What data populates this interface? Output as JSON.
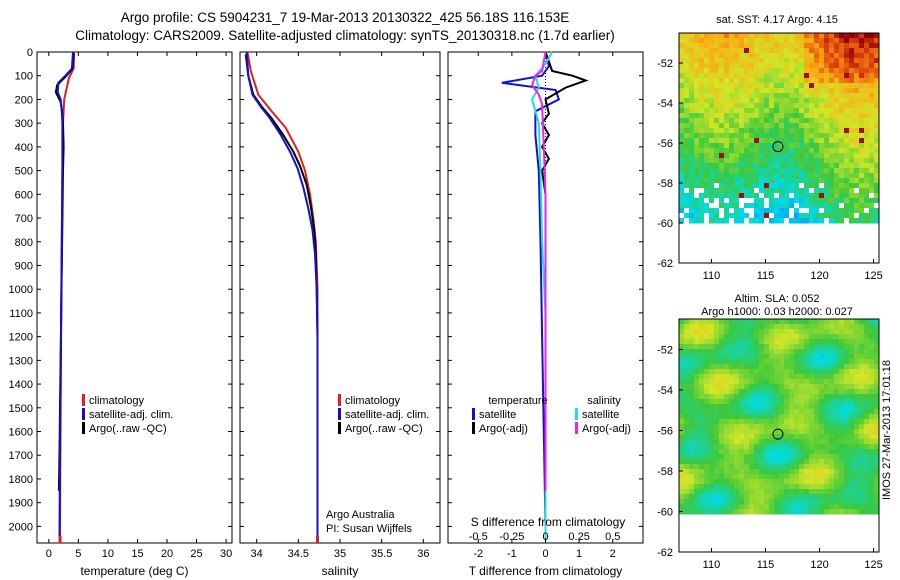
{
  "header": {
    "line1": "Argo profile: CS 5904231_7 19-Mar-2013 20130322_425 56.18S 116.153E",
    "line2": "Climatology: CARS2009. Satellite-adjusted climatology: synTS_20130318.nc (1.7d earlier)"
  },
  "colors": {
    "climatology": "#e02020",
    "satellite": "#1010d0",
    "argo": "#000000",
    "sat_s": "#22dddd",
    "argo_s": "#ee22ee"
  },
  "chart_data": [
    {
      "type": "line",
      "title": "",
      "xlabel": "temperature (deg C)",
      "ylabel": "",
      "xlim": [
        -2,
        31
      ],
      "ylim": [
        2070,
        0
      ],
      "xticks": [
        0,
        5,
        10,
        15,
        20,
        25,
        30
      ],
      "yticks": [
        0,
        100,
        200,
        300,
        400,
        500,
        600,
        700,
        800,
        900,
        1000,
        1100,
        1200,
        1300,
        1400,
        1500,
        1600,
        1700,
        1800,
        1900,
        2000
      ],
      "legend": [
        "climatology",
        "satellite-adj. clim.",
        "Argo(..raw -QC)"
      ],
      "series": [
        {
          "name": "climatology",
          "color_key": "climatology",
          "points": [
            [
              4.3,
              0
            ],
            [
              4.2,
              70
            ],
            [
              3.4,
              110
            ],
            [
              2.6,
              200
            ],
            [
              2.4,
              300
            ],
            [
              2.3,
              500
            ],
            [
              2.2,
              800
            ],
            [
              2.1,
              1100
            ],
            [
              2.0,
              1500
            ],
            [
              1.9,
              2050
            ]
          ]
        },
        {
          "name": "Argo(..raw -QC)",
          "color_key": "argo",
          "points": [
            [
              4.2,
              5
            ],
            [
              4.0,
              70
            ],
            [
              3.0,
              100
            ],
            [
              1.4,
              140
            ],
            [
              1.2,
              170
            ],
            [
              2.0,
              210
            ],
            [
              2.2,
              240
            ],
            [
              2.4,
              300
            ],
            [
              2.5,
              400
            ],
            [
              2.4,
              500
            ],
            [
              2.3,
              700
            ],
            [
              2.2,
              900
            ],
            [
              2.1,
              1100
            ],
            [
              2.0,
              1300
            ],
            [
              1.9,
              1500
            ],
            [
              1.8,
              1700
            ],
            [
              1.7,
              1850
            ]
          ]
        },
        {
          "name": "satellite-adj. clim.",
          "color_key": "satellite",
          "points": [
            [
              4.1,
              0
            ],
            [
              3.9,
              70
            ],
            [
              2.8,
              100
            ],
            [
              1.6,
              130
            ],
            [
              1.5,
              170
            ],
            [
              2.0,
              200
            ],
            [
              2.2,
              250
            ],
            [
              2.3,
              300
            ],
            [
              2.3,
              500
            ],
            [
              2.2,
              800
            ],
            [
              2.1,
              1100
            ],
            [
              2.0,
              1400
            ],
            [
              1.9,
              1700
            ],
            [
              1.8,
              2050
            ]
          ]
        }
      ]
    },
    {
      "type": "line",
      "title": "",
      "xlabel": "salinity",
      "ylabel": "",
      "xlim": [
        33.8,
        36.2
      ],
      "ylim": [
        2070,
        0
      ],
      "xticks": [
        34,
        34.5,
        35,
        35.5,
        36
      ],
      "legend": [
        "climatology",
        "satellite-adj. clim.",
        "Argo(..raw -QC)"
      ],
      "annotations": [
        "Argo Australia",
        "PI: Susan Wijffels"
      ],
      "series": [
        {
          "name": "climatology",
          "color_key": "climatology",
          "points": [
            [
              33.89,
              0
            ],
            [
              33.93,
              80
            ],
            [
              34.02,
              180
            ],
            [
              34.18,
              250
            ],
            [
              34.35,
              320
            ],
            [
              34.5,
              420
            ],
            [
              34.58,
              500
            ],
            [
              34.64,
              600
            ],
            [
              34.68,
              700
            ],
            [
              34.71,
              800
            ],
            [
              34.73,
              1000
            ],
            [
              34.73,
              1200
            ],
            [
              34.73,
              1500
            ],
            [
              34.73,
              2050
            ]
          ]
        },
        {
          "name": "Argo(..raw -QC)",
          "color_key": "argo",
          "points": [
            [
              33.87,
              10
            ],
            [
              33.9,
              100
            ],
            [
              33.96,
              180
            ],
            [
              34.06,
              230
            ],
            [
              34.18,
              280
            ],
            [
              34.32,
              350
            ],
            [
              34.44,
              420
            ],
            [
              34.52,
              480
            ],
            [
              34.6,
              560
            ],
            [
              34.65,
              650
            ],
            [
              34.69,
              750
            ],
            [
              34.71,
              850
            ],
            [
              34.72,
              1000
            ],
            [
              34.73,
              1200
            ],
            [
              34.73,
              1500
            ],
            [
              34.73,
              1850
            ]
          ]
        },
        {
          "name": "satellite-adj. clim.",
          "color_key": "satellite",
          "points": [
            [
              33.88,
              0
            ],
            [
              33.9,
              100
            ],
            [
              33.95,
              180
            ],
            [
              34.05,
              230
            ],
            [
              34.16,
              280
            ],
            [
              34.29,
              350
            ],
            [
              34.4,
              420
            ],
            [
              34.49,
              490
            ],
            [
              34.56,
              570
            ],
            [
              34.62,
              660
            ],
            [
              34.67,
              750
            ],
            [
              34.7,
              850
            ],
            [
              34.72,
              1000
            ],
            [
              34.73,
              1200
            ],
            [
              34.73,
              1500
            ],
            [
              34.73,
              2050
            ]
          ]
        }
      ]
    },
    {
      "type": "line",
      "title": "",
      "xlabel": "T difference from climatology",
      "xlabel_top": "S difference from climatology",
      "ylabel": "",
      "xlim": [
        -2.9,
        2.9
      ],
      "ylim": [
        2070,
        0
      ],
      "xticks": [
        -2,
        -1,
        0,
        1,
        2
      ],
      "xticks_s_labels": [
        "-0.5",
        "-0.25",
        "0",
        "0.25",
        "0.5"
      ],
      "xticks_s_values": [
        -2,
        -1,
        0,
        1,
        2
      ],
      "legend_left_title": "temperature",
      "legend_right_title": "salinity",
      "legend": [
        "satellite",
        "Argo(-adj)",
        "satellite",
        "Argo(-adj)"
      ],
      "series": [
        {
          "name": "T satellite",
          "color_key": "satellite",
          "points": [
            [
              0,
              0
            ],
            [
              0.1,
              60
            ],
            [
              -0.1,
              100
            ],
            [
              -1.3,
              130
            ],
            [
              0.3,
              160
            ],
            [
              0.4,
              200
            ],
            [
              -0.3,
              250
            ],
            [
              -0.3,
              350
            ],
            [
              -0.2,
              500
            ],
            [
              -0.15,
              800
            ],
            [
              -0.1,
              1200
            ],
            [
              -0.05,
              1600
            ],
            [
              0,
              2000
            ]
          ]
        },
        {
          "name": "T Argo(-adj)",
          "color_key": "argo",
          "points": [
            [
              0,
              0
            ],
            [
              0.2,
              80
            ],
            [
              0.8,
              100
            ],
            [
              1.2,
              120
            ],
            [
              0.6,
              150
            ],
            [
              0,
              200
            ],
            [
              0.1,
              260
            ],
            [
              -0.1,
              300
            ],
            [
              0.1,
              350
            ],
            [
              -0.1,
              400
            ],
            [
              0.1,
              450
            ],
            [
              -0.1,
              500
            ],
            [
              0,
              600
            ],
            [
              0,
              800
            ],
            [
              0,
              1200
            ],
            [
              0,
              1600
            ],
            [
              0,
              1850
            ]
          ]
        },
        {
          "name": "S satellite",
          "color_key": "sat_s",
          "points": [
            [
              0.2,
              0
            ],
            [
              0,
              50
            ],
            [
              -0.3,
              100
            ],
            [
              -0.2,
              150
            ],
            [
              -0.4,
              200
            ],
            [
              -0.2,
              300
            ],
            [
              -0.15,
              500
            ],
            [
              -0.1,
              800
            ],
            [
              0,
              1100
            ],
            [
              0,
              1500
            ],
            [
              0,
              2050
            ]
          ]
        },
        {
          "name": "S Argo(-adj)",
          "color_key": "argo_s",
          "points": [
            [
              0,
              0
            ],
            [
              -0.1,
              80
            ],
            [
              -0.3,
              100
            ],
            [
              -0.4,
              140
            ],
            [
              -0.2,
              180
            ],
            [
              -0.1,
              220
            ],
            [
              -0.05,
              400
            ],
            [
              0,
              600
            ],
            [
              0,
              1000
            ],
            [
              0,
              1500
            ],
            [
              0,
              1850
            ]
          ]
        }
      ]
    },
    {
      "type": "heatmap",
      "title": "sat. SST: 4.17 Argo: 4.15",
      "xlim": [
        107,
        125.5
      ],
      "ylim": [
        -62,
        -50.5
      ],
      "xticks": [
        110,
        115,
        120,
        125
      ],
      "yticks": [
        -52,
        -54,
        -56,
        -58,
        -60,
        -62
      ],
      "marker": {
        "lon": 116.153,
        "lat": -56.18
      },
      "nodata_below": -60
    },
    {
      "type": "heatmap",
      "title": "Altim. SLA: 0.052",
      "subtitle": "Argo h1000: 0.03 h2000: 0.027",
      "xlim": [
        107,
        125.5
      ],
      "ylim": [
        -62,
        -50.5
      ],
      "xticks": [
        110,
        115,
        120,
        125
      ],
      "yticks": [
        -52,
        -54,
        -56,
        -58,
        -60,
        -62
      ],
      "marker": {
        "lon": 116.153,
        "lat": -56.18
      },
      "nodata_below": -60
    }
  ],
  "stamp": "IMOS 27-Mar-2013 17:01:18"
}
